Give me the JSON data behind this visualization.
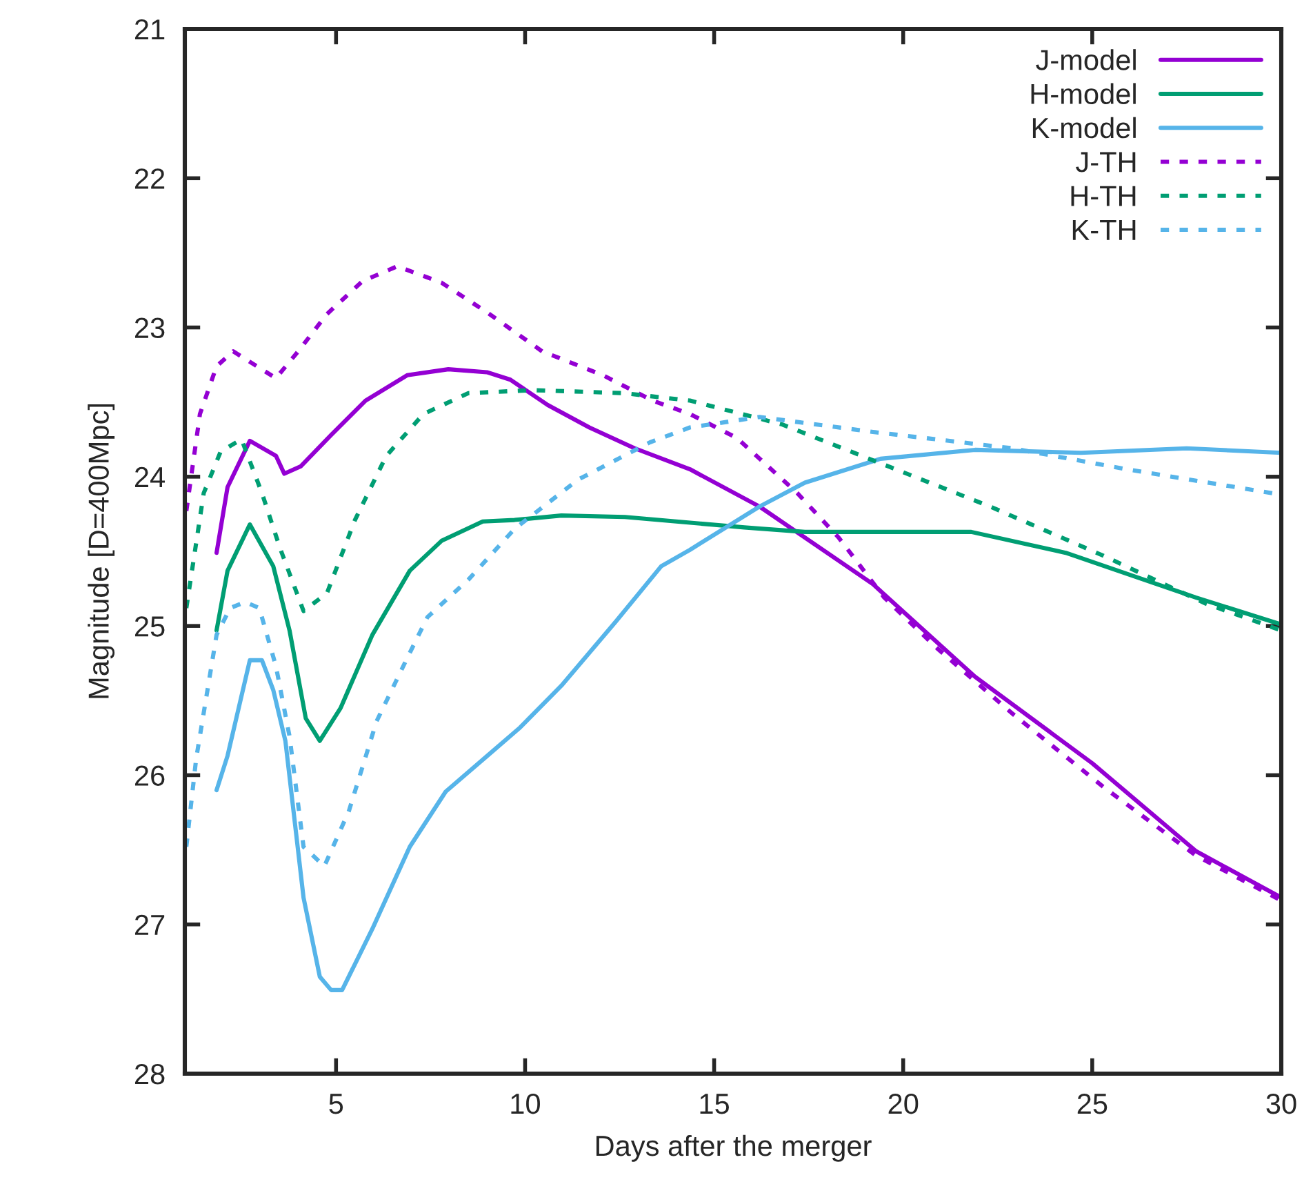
{
  "chart_data": {
    "type": "line",
    "xlabel": "Days after the merger",
    "ylabel": "Magnitude [D=400Mpc]",
    "xlim": [
      1,
      30
    ],
    "xticks": [
      5,
      10,
      15,
      20,
      25,
      30
    ],
    "ylim": [
      28,
      21
    ],
    "yticks": [
      21,
      22,
      23,
      24,
      25,
      26,
      27,
      28
    ],
    "grid": false,
    "legend": "top right",
    "marker": "none",
    "series": [
      {
        "name": "J-model",
        "color": "#9400d3",
        "line_style": "solid",
        "x": [
          1.84,
          2.13,
          2.72,
          3.41,
          3.63,
          4.07,
          4.87,
          5.78,
          6.88,
          7.97,
          8.99,
          9.61,
          10.6,
          11.7,
          12.9,
          14.36,
          16.2,
          19.2,
          21.9,
          25.0,
          27.75,
          30.0
        ],
        "values": [
          24.51,
          24.07,
          23.76,
          23.86,
          23.98,
          23.93,
          23.72,
          23.49,
          23.32,
          23.28,
          23.3,
          23.35,
          23.52,
          23.67,
          23.81,
          23.95,
          24.2,
          24.72,
          25.34,
          25.92,
          26.51,
          26.82
        ]
      },
      {
        "name": "H-model",
        "color": "#009e73",
        "line_style": "solid",
        "x": [
          1.84,
          2.13,
          2.72,
          3.34,
          3.77,
          4.2,
          4.57,
          5.12,
          5.96,
          6.95,
          7.79,
          8.88,
          9.72,
          10.96,
          12.64,
          15.8,
          17.4,
          21.8,
          24.3,
          27.75,
          30.0
        ],
        "values": [
          25.03,
          24.63,
          24.32,
          24.6,
          25.03,
          25.62,
          25.77,
          25.55,
          25.06,
          24.63,
          24.43,
          24.3,
          24.29,
          24.26,
          24.27,
          24.34,
          24.37,
          24.37,
          24.51,
          24.81,
          24.99
        ]
      },
      {
        "name": "K-model",
        "color": "#56b4e9",
        "line_style": "solid",
        "x": [
          1.84,
          2.13,
          2.72,
          3.04,
          3.34,
          3.66,
          4.14,
          4.57,
          4.87,
          5.16,
          5.96,
          6.95,
          7.9,
          9.0,
          9.87,
          10.96,
          12.4,
          13.6,
          14.36,
          16.2,
          17.4,
          19.4,
          21.9,
          24.7,
          27.5,
          30.0
        ],
        "values": [
          26.1,
          25.87,
          25.23,
          25.23,
          25.43,
          25.77,
          26.82,
          27.35,
          27.44,
          27.44,
          27.03,
          26.48,
          26.11,
          25.87,
          25.68,
          25.4,
          24.97,
          24.6,
          24.49,
          24.2,
          24.04,
          23.88,
          23.82,
          23.84,
          23.81,
          23.84
        ]
      },
      {
        "name": "J-TH",
        "color": "#9400d3",
        "line_style": "dotted",
        "x": [
          1.04,
          1.4,
          1.84,
          2.28,
          3.41,
          4.03,
          4.76,
          5.7,
          6.62,
          7.79,
          9.0,
          10.45,
          12.06,
          13.37,
          14.36,
          15.6,
          17.2,
          18.3,
          19.5,
          20.9,
          22.9,
          25.3,
          27.75,
          30.0
        ],
        "values": [
          24.23,
          23.58,
          23.26,
          23.16,
          23.34,
          23.15,
          22.91,
          22.69,
          22.59,
          22.7,
          22.9,
          23.16,
          23.32,
          23.49,
          23.58,
          23.74,
          24.11,
          24.41,
          24.81,
          25.15,
          25.59,
          26.08,
          26.54,
          26.84
        ]
      },
      {
        "name": "H-TH",
        "color": "#009e73",
        "line_style": "dotted",
        "x": [
          1.04,
          1.5,
          1.95,
          2.5,
          3.04,
          3.52,
          4.14,
          4.76,
          5.5,
          6.33,
          7.31,
          8.5,
          10.2,
          12.6,
          14.36,
          16.8,
          19.5,
          22.3,
          25.3,
          28.0,
          30.0
        ],
        "values": [
          24.88,
          24.11,
          23.83,
          23.75,
          24.11,
          24.48,
          24.9,
          24.78,
          24.29,
          23.86,
          23.58,
          23.44,
          23.42,
          23.44,
          23.49,
          23.65,
          23.92,
          24.2,
          24.53,
          24.85,
          25.03
        ]
      },
      {
        "name": "K-TH",
        "color": "#56b4e9",
        "line_style": "dotted",
        "x": [
          1.04,
          1.3,
          1.84,
          2.2,
          2.6,
          2.97,
          3.41,
          3.77,
          4.14,
          4.69,
          5.34,
          6.07,
          6.95,
          7.42,
          8.5,
          9.72,
          11.4,
          13.3,
          14.36,
          16.2,
          19.2,
          22.9,
          25.9,
          30.0
        ],
        "values": [
          26.48,
          25.89,
          25.06,
          24.88,
          24.84,
          24.88,
          25.27,
          25.74,
          26.48,
          26.61,
          26.24,
          25.64,
          25.18,
          24.94,
          24.69,
          24.35,
          24.02,
          23.77,
          23.67,
          23.6,
          23.7,
          23.81,
          23.95,
          24.12
        ]
      }
    ]
  }
}
